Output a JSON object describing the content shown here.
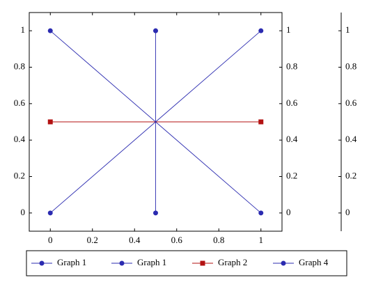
{
  "chart_data": {
    "type": "line",
    "xlim": [
      -0.1,
      1.1
    ],
    "ylim": [
      -0.1,
      1.1
    ],
    "xticks": [
      0,
      0.2,
      0.4,
      0.6,
      0.8,
      1
    ],
    "yticks": [
      0,
      0.2,
      0.4,
      0.6,
      0.8,
      1
    ],
    "series": [
      {
        "name": "Graph 1",
        "color": "#2b2bb0",
        "marker": "circle",
        "x": [
          0,
          1
        ],
        "values": [
          1,
          0
        ]
      },
      {
        "name": "Graph 1",
        "color": "#2b2bb0",
        "marker": "circle",
        "x": [
          0.5,
          0.5
        ],
        "values": [
          1,
          0
        ]
      },
      {
        "name": "Graph 2",
        "color": "#b31212",
        "marker": "square",
        "x": [
          0,
          1
        ],
        "values": [
          0.5,
          0.5
        ]
      },
      {
        "name": "Graph 4",
        "color": "#2b2bb0",
        "marker": "circle",
        "x": [
          0,
          1
        ],
        "values": [
          0,
          1
        ]
      }
    ]
  }
}
